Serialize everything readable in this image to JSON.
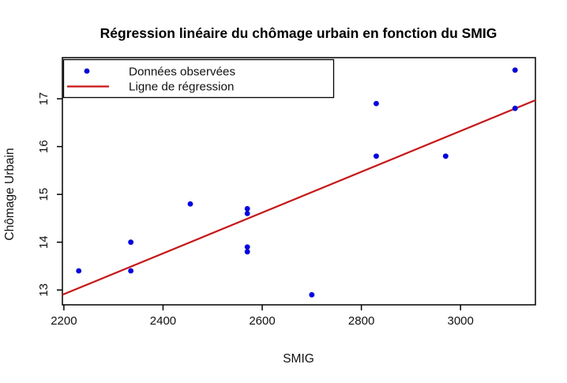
{
  "chart_data": {
    "type": "scatter",
    "title": "Régression linéaire du chômage urbain en fonction du SMIG",
    "xlabel": "SMIG",
    "ylabel": "Chômage Urbain",
    "xlim": [
      2197,
      3151
    ],
    "ylim": [
      12.69,
      17.86
    ],
    "xticks": [
      2200,
      2400,
      2600,
      2800,
      3000
    ],
    "yticks": [
      13,
      14,
      15,
      16,
      17
    ],
    "grid": false,
    "legend_position": "topleft",
    "series": [
      {
        "name": "Données observées",
        "type": "scatter",
        "marker": "filled-circle",
        "color": "#0000EE",
        "points": [
          [
            2230,
            13.4
          ],
          [
            2335,
            14.0
          ],
          [
            2335,
            13.4
          ],
          [
            2455,
            14.8
          ],
          [
            2570,
            14.7
          ],
          [
            2570,
            14.6
          ],
          [
            2570,
            13.9
          ],
          [
            2570,
            13.8
          ],
          [
            2700,
            12.9
          ],
          [
            2830,
            16.9
          ],
          [
            2830,
            15.8
          ],
          [
            2970,
            15.8
          ],
          [
            3110,
            17.6
          ],
          [
            3110,
            16.8
          ]
        ]
      },
      {
        "name": "Ligne de régression",
        "type": "line",
        "color": "#CC1414",
        "x": [
          2197,
          3151
        ],
        "y": [
          12.9,
          16.97
        ]
      }
    ]
  },
  "colors": {
    "background": "#ffffff",
    "axis": "#000000",
    "point": "#0000EE",
    "regression_line": "#CC1414",
    "text": "#111111"
  }
}
